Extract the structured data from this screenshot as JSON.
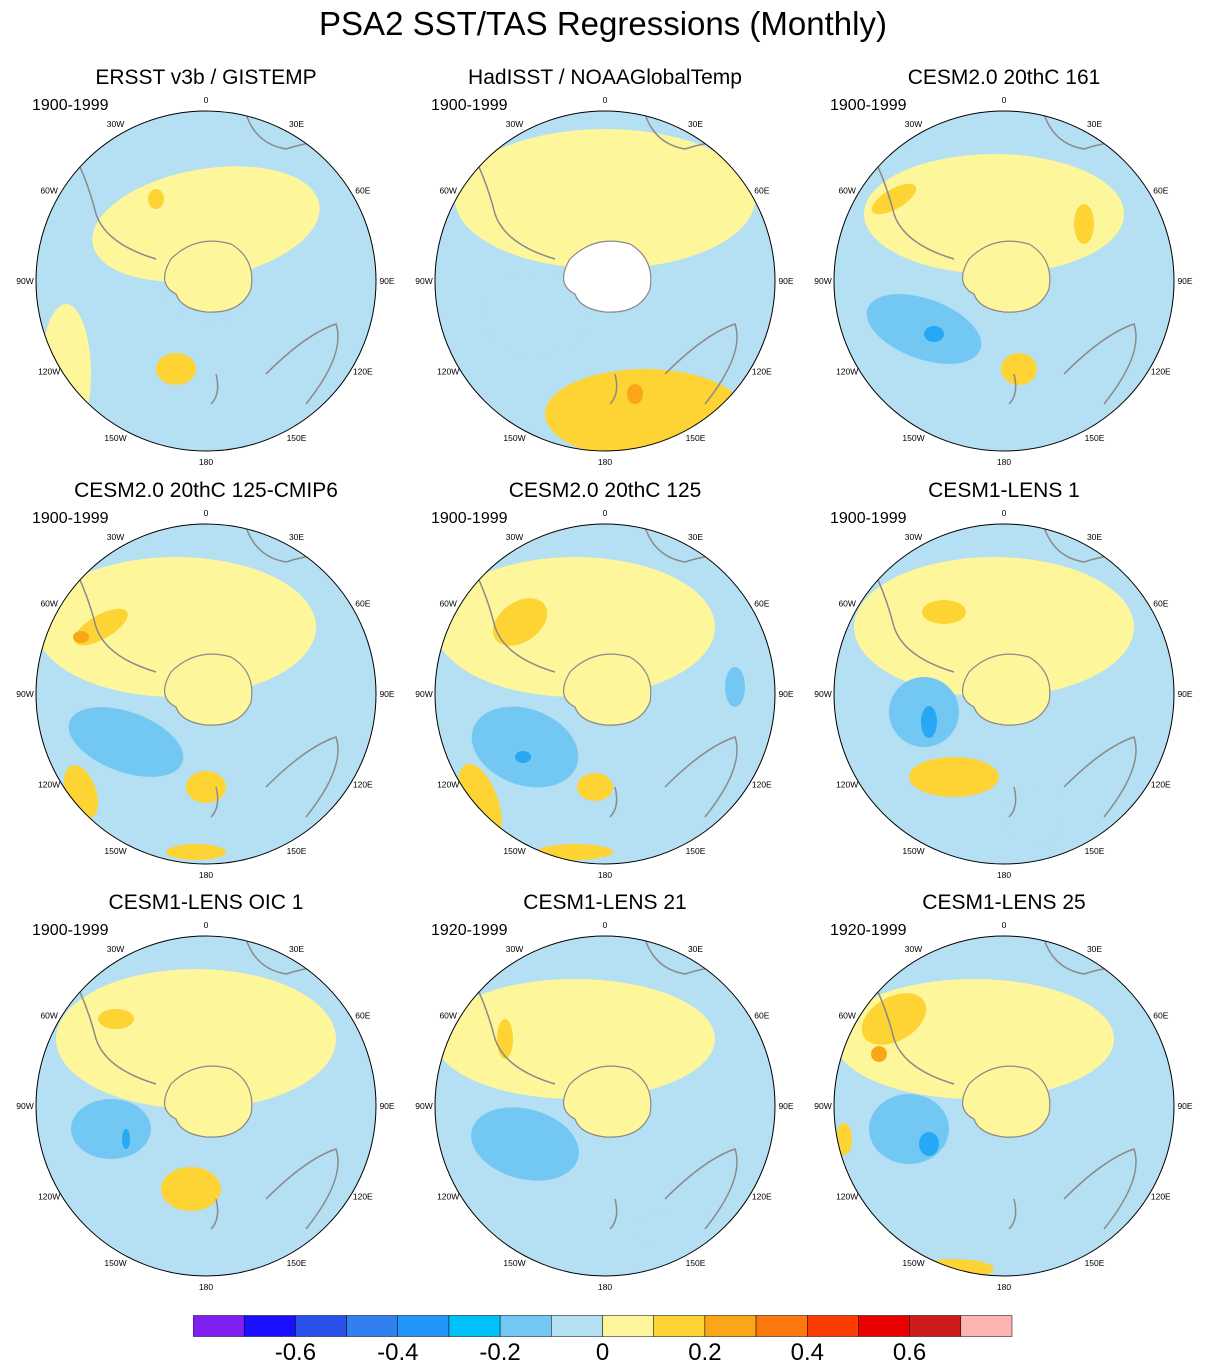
{
  "title": "PSA2 SST/TAS Regressions (Monthly)",
  "longitude_labels": [
    "0",
    "30E",
    "60E",
    "90E",
    "120E",
    "150E",
    "180",
    "150W",
    "120W",
    "90W",
    "60W",
    "30W"
  ],
  "colors": {
    "ocean_neutral_neg": "#b5dff2",
    "ocean_neutral_pos": "#fef69a",
    "weak_pos": "#fdd434",
    "moderate_pos": "#fba618",
    "weak_neg": "#73c8f3",
    "moderate_neg": "#26a8f5",
    "land_outline": "#8a8a8a",
    "missing": "#ffffff"
  },
  "panels": [
    {
      "title": "ERSST v3b / GISTEMP",
      "years": "1900-1999"
    },
    {
      "title": "HadISST / NOAAGlobalTemp",
      "years": "1900-1999"
    },
    {
      "title": "CESM2.0 20thC 161",
      "years": "1900-1999"
    },
    {
      "title": "CESM2.0 20thC 125-CMIP6",
      "years": "1900-1999"
    },
    {
      "title": "CESM2.0 20thC 125",
      "years": "1900-1999"
    },
    {
      "title": "CESM1-LENS 1",
      "years": "1900-1999"
    },
    {
      "title": "CESM1-LENS OIC 1",
      "years": "1900-1999"
    },
    {
      "title": "CESM1-LENS 21",
      "years": "1920-1999"
    },
    {
      "title": "CESM1-LENS 25",
      "years": "1920-1999"
    }
  ],
  "colorbar": {
    "colors": [
      "#8020f0",
      "#1a10ff",
      "#2a50ec",
      "#3280ee",
      "#2198f8",
      "#00c0f8",
      "#73c8f3",
      "#b5dff2",
      "#fef69a",
      "#fdd434",
      "#fba618",
      "#fb7810",
      "#fb3c00",
      "#eb0000",
      "#cd1c1c",
      "#ffb4b4"
    ],
    "tick_values": [
      -0.6,
      -0.4,
      -0.2,
      0,
      0.2,
      0.4,
      0.6
    ],
    "tick_labels": [
      "-0.6",
      "-0.4",
      "-0.2",
      "0",
      "0.2",
      "0.4",
      "0.6"
    ]
  }
}
